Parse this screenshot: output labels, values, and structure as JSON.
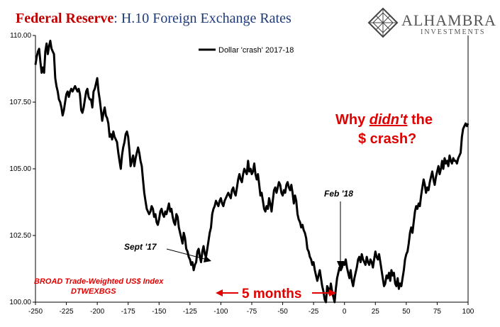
{
  "header": {
    "title_prefix": "Federal Reserve",
    "title_rest": ": H.10 Foreign Exchange Rates"
  },
  "logo": {
    "name": "ALHAMBRA",
    "sub": "INVESTMENTS"
  },
  "annotations": {
    "question_line1": "Why ",
    "question_emph": "didn't",
    "question_line1_end": " the",
    "question_line2": "$ crash?",
    "sept": "Sept '17",
    "feb": "Feb '18",
    "months": "5 months",
    "source_line1": "BROAD Trade-Weighted US$ Index",
    "source_line2": "DTWEXBGS"
  },
  "colors": {
    "title_red": "#c00000",
    "title_blue": "#1f3a78",
    "annotation_red": "#e00000",
    "line": "#000000"
  },
  "chart_data": {
    "type": "line",
    "title": "Federal Reserve: H.10 Foreign Exchange Rates",
    "xlabel": "",
    "ylabel": "",
    "xlim": [
      -250,
      100
    ],
    "ylim": [
      100,
      110
    ],
    "x_ticks": [
      -250,
      -225,
      -200,
      -175,
      -150,
      -125,
      -100,
      -75,
      -50,
      -25,
      0,
      25,
      50,
      75,
      100
    ],
    "y_ticks": [
      100,
      102.5,
      105,
      107.5,
      110
    ],
    "y_tick_labels": [
      "100.00",
      "102.50",
      "105.00",
      "107.50",
      "110.00"
    ],
    "grid": false,
    "legend_position": "top-center",
    "series": [
      {
        "name": "Dollar 'crash' 2017-18",
        "x": [
          -250,
          -249,
          -248,
          -247,
          -246,
          -245,
          -244,
          -243,
          -242,
          -241,
          -240,
          -239,
          -238,
          -237,
          -236,
          -235,
          -234,
          -233,
          -232,
          -231,
          -230,
          -229,
          -228,
          -227,
          -226,
          -225,
          -224,
          -223,
          -222,
          -221,
          -220,
          -219,
          -218,
          -217,
          -216,
          -215,
          -214,
          -213,
          -212,
          -211,
          -210,
          -209,
          -208,
          -207,
          -206,
          -205,
          -204,
          -203,
          -202,
          -201,
          -200,
          -199,
          -198,
          -197,
          -196,
          -195,
          -194,
          -193,
          -192,
          -191,
          -190,
          -189,
          -188,
          -187,
          -186,
          -185,
          -184,
          -183,
          -182,
          -181,
          -180,
          -179,
          -178,
          -177,
          -176,
          -175,
          -174,
          -173,
          -172,
          -171,
          -170,
          -169,
          -168,
          -167,
          -166,
          -165,
          -164,
          -163,
          -162,
          -161,
          -160,
          -159,
          -158,
          -157,
          -156,
          -155,
          -154,
          -153,
          -152,
          -151,
          -150,
          -149,
          -148,
          -147,
          -146,
          -145,
          -144,
          -143,
          -142,
          -141,
          -140,
          -139,
          -138,
          -137,
          -136,
          -135,
          -134,
          -133,
          -132,
          -131,
          -130,
          -129,
          -128,
          -127,
          -126,
          -125,
          -124,
          -123,
          -122,
          -121,
          -120,
          -119,
          -118,
          -117,
          -116,
          -115,
          -114,
          -113,
          -112,
          -111,
          -110,
          -109,
          -108,
          -107,
          -106,
          -105,
          -104,
          -103,
          -102,
          -101,
          -100,
          -99,
          -98,
          -97,
          -96,
          -95,
          -94,
          -93,
          -92,
          -91,
          -90,
          -89,
          -88,
          -87,
          -86,
          -85,
          -84,
          -83,
          -82,
          -81,
          -80,
          -79,
          -78,
          -77,
          -76,
          -75,
          -74,
          -73,
          -72,
          -71,
          -70,
          -69,
          -68,
          -67,
          -66,
          -65,
          -64,
          -63,
          -62,
          -61,
          -60,
          -59,
          -58,
          -57,
          -56,
          -55,
          -54,
          -53,
          -52,
          -51,
          -50,
          -49,
          -48,
          -47,
          -46,
          -45,
          -44,
          -43,
          -42,
          -41,
          -40,
          -39,
          -38,
          -37,
          -36,
          -35,
          -34,
          -33,
          -32,
          -31,
          -30,
          -29,
          -28,
          -27,
          -26,
          -25,
          -24,
          -23,
          -22,
          -21,
          -20,
          -19,
          -18,
          -17,
          -16,
          -15,
          -14,
          -13,
          -12,
          -11,
          -10,
          -9,
          -8,
          -7,
          -6,
          -5,
          -4,
          -3,
          -2,
          -1,
          0,
          1,
          2,
          3,
          4,
          5,
          6,
          7,
          8,
          9,
          10,
          11,
          12,
          13,
          14,
          15,
          16,
          17,
          18,
          19,
          20,
          21,
          22,
          23,
          24,
          25,
          26,
          27,
          28,
          29,
          30,
          31,
          32,
          33,
          34,
          35,
          36,
          37,
          38,
          39,
          40,
          41,
          42,
          43,
          44,
          45,
          46,
          47,
          48,
          49,
          50,
          51,
          52,
          53,
          54,
          55,
          56,
          57,
          58,
          59,
          60,
          61,
          62,
          63,
          64,
          65,
          66,
          67,
          68,
          69,
          70,
          71,
          72,
          73,
          74,
          75,
          76,
          77,
          78,
          79,
          80,
          81,
          82,
          83,
          84,
          85,
          86,
          87,
          88,
          89,
          90,
          91,
          92,
          93,
          94,
          95,
          96,
          97,
          98,
          99,
          100
        ],
        "values": [
          108.9,
          109.2,
          109.4,
          109.5,
          109.0,
          108.6,
          108.8,
          108.6,
          109.4,
          109.7,
          109.3,
          109.6,
          109.8,
          109.5,
          109.4,
          109.3,
          108.4,
          108.1,
          107.9,
          107.6,
          107.5,
          107.3,
          107.0,
          107.2,
          107.5,
          107.8,
          107.9,
          107.7,
          107.9,
          108.0,
          107.9,
          108.0,
          108.1,
          108.0,
          107.9,
          108.0,
          107.8,
          107.2,
          107.1,
          107.3,
          107.6,
          107.9,
          108.0,
          107.7,
          107.6,
          107.6,
          107.3,
          107.9,
          108.0,
          108.2,
          108.4,
          107.9,
          107.6,
          107.2,
          106.8,
          107.1,
          107.3,
          107.0,
          106.9,
          106.7,
          106.2,
          106.3,
          106.1,
          106.4,
          106.2,
          106.1,
          106.0,
          105.6,
          105.3,
          105.0,
          105.5,
          105.8,
          106.0,
          106.3,
          106.4,
          106.2,
          105.7,
          105.1,
          105.3,
          105.5,
          105.1,
          105.4,
          105.6,
          105.8,
          105.6,
          105.3,
          105.1,
          104.6,
          104.1,
          103.8,
          103.5,
          103.4,
          103.3,
          103.4,
          103.6,
          103.5,
          103.2,
          103.3,
          103.0,
          102.9,
          103.1,
          103.4,
          103.5,
          103.3,
          103.2,
          103.4,
          103.3,
          103.5,
          103.7,
          103.4,
          103.5,
          103.2,
          103.0,
          102.9,
          103.3,
          103.2,
          102.8,
          102.6,
          102.4,
          102.2,
          102.6,
          102.4,
          102.0,
          101.9,
          101.7,
          101.6,
          101.4,
          101.5,
          101.2,
          101.4,
          101.5,
          101.9,
          102.0,
          101.7,
          101.5,
          101.9,
          102.1,
          101.8,
          101.7,
          102.0,
          102.3,
          102.6,
          102.8,
          103.3,
          103.5,
          103.6,
          103.8,
          103.7,
          103.6,
          103.8,
          103.9,
          103.7,
          103.6,
          103.8,
          103.9,
          104.0,
          104.1,
          104.0,
          103.9,
          104.2,
          104.3,
          104.1,
          104.0,
          104.3,
          104.6,
          104.8,
          104.6,
          104.5,
          104.8,
          105.0,
          104.9,
          104.8,
          105.3,
          104.9,
          105.0,
          104.8,
          104.9,
          105.2,
          104.8,
          104.6,
          104.8,
          104.4,
          104.0,
          104.1,
          103.8,
          103.5,
          103.4,
          103.6,
          103.5,
          103.9,
          103.7,
          103.4,
          103.8,
          104.2,
          104.3,
          104.1,
          104.3,
          104.5,
          104.4,
          104.1,
          104.0,
          104.2,
          104.1,
          104.4,
          104.5,
          104.3,
          104.2,
          104.4,
          104.1,
          103.7,
          104.0,
          103.8,
          103.3,
          103.1,
          103.0,
          102.8,
          102.9,
          102.7,
          102.6,
          102.4,
          102.0,
          101.9,
          101.7,
          101.6,
          101.4,
          101.5,
          101.2,
          101.0,
          100.8,
          101.0,
          101.2,
          100.9,
          100.6,
          100.4,
          100.1,
          100.0,
          100.6,
          100.5,
          100.3,
          100.7,
          100.4,
          100.2,
          100.0,
          100.5,
          100.9,
          101.1,
          101.3,
          101.2,
          101.3,
          101.5,
          101.4,
          101.6,
          101.3,
          101.1,
          100.9,
          101.2,
          100.8,
          100.6,
          100.9,
          101.1,
          101.3,
          101.6,
          101.7,
          101.5,
          101.8,
          101.6,
          101.5,
          101.4,
          101.7,
          101.5,
          101.4,
          101.6,
          101.5,
          101.3,
          101.6,
          101.9,
          101.7,
          101.6,
          101.8,
          101.5,
          101.2,
          100.9,
          100.6,
          100.7,
          101.0,
          100.9,
          101.1,
          100.8,
          101.2,
          101.0,
          101.1,
          100.7,
          100.6,
          100.9,
          100.5,
          100.7,
          100.6,
          100.9,
          101.2,
          101.6,
          101.8,
          101.9,
          102.2,
          102.6,
          102.8,
          102.6,
          103.0,
          103.4,
          103.6,
          103.5,
          103.7,
          103.6,
          104.0,
          104.3,
          104.6,
          104.4,
          104.1,
          104.3,
          104.2,
          104.5,
          104.7,
          104.9,
          104.6,
          104.4,
          104.7,
          104.9,
          105.1,
          104.8,
          105.0,
          105.3,
          105.0,
          105.4,
          105.2,
          105.3,
          105.1,
          105.5,
          105.3,
          105.2,
          105.4,
          105.3,
          105.3,
          105.2,
          105.4,
          105.5,
          105.6,
          106.2,
          106.5,
          106.6,
          106.7,
          106.6,
          106.7
        ]
      }
    ]
  }
}
